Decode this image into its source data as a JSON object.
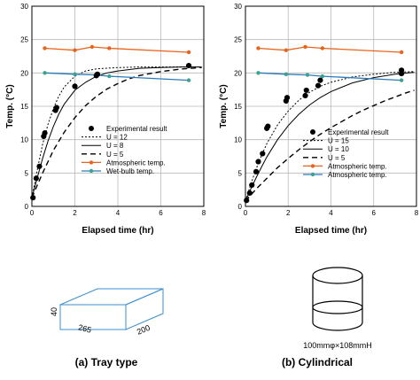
{
  "chart_data": [
    {
      "type": "line",
      "id": "a",
      "caption": "(a) Tray type",
      "xlabel": "Elapsed time (hr)",
      "ylabel": "Temp. (°C)",
      "xlim": [
        0,
        8
      ],
      "ylim": [
        0,
        30
      ],
      "xticks": [
        0,
        2,
        4,
        6,
        8
      ],
      "yticks": [
        0,
        5,
        10,
        15,
        20,
        25,
        30
      ],
      "grid": true,
      "legend_position": "bottom-right",
      "legend": [
        {
          "label": "Experimental result",
          "style": "dots",
          "color": "#000000"
        },
        {
          "label": "U = 12",
          "style": "dotted",
          "color": "#000000"
        },
        {
          "label": "U = 8",
          "style": "solid",
          "color": "#000000"
        },
        {
          "label": "U = 5",
          "style": "dashed",
          "color": "#000000"
        },
        {
          "label": "Atmospheric temp.",
          "style": "orange-line",
          "color": "#e8641c"
        },
        {
          "label": "Wet-bulb temp.",
          "style": "blue-line",
          "color": "#2b7bba"
        }
      ],
      "experimental": [
        [
          0.05,
          1.3
        ],
        [
          0.2,
          4.2
        ],
        [
          0.35,
          6.0
        ],
        [
          0.55,
          10.5
        ],
        [
          0.6,
          11.0
        ],
        [
          1.1,
          14.4
        ],
        [
          1.15,
          14.8
        ],
        [
          2.0,
          18.0
        ],
        [
          3.0,
          19.6
        ],
        [
          3.05,
          19.8
        ],
        [
          7.3,
          21.1
        ]
      ],
      "model_curves": [
        {
          "U": 12,
          "style": "dotted",
          "points": [
            [
              0,
              1.3
            ],
            [
              0.25,
              5.5
            ],
            [
              0.5,
              9.3
            ],
            [
              0.75,
              12.3
            ],
            [
              1.0,
              14.7
            ],
            [
              1.25,
              16.5
            ],
            [
              1.5,
              17.9
            ],
            [
              2.0,
              19.5
            ],
            [
              2.5,
              20.3
            ],
            [
              3.0,
              20.6
            ],
            [
              4.0,
              20.8
            ],
            [
              5.0,
              20.9
            ],
            [
              6.0,
              20.9
            ],
            [
              7.0,
              20.9
            ],
            [
              7.9,
              20.9
            ]
          ]
        },
        {
          "U": 8,
          "style": "solid",
          "points": [
            [
              0,
              1.3
            ],
            [
              0.25,
              4.3
            ],
            [
              0.5,
              7.2
            ],
            [
              0.75,
              9.8
            ],
            [
              1.0,
              12.0
            ],
            [
              1.25,
              13.8
            ],
            [
              1.5,
              15.3
            ],
            [
              2.0,
              17.4
            ],
            [
              2.5,
              18.6
            ],
            [
              3.0,
              19.5
            ],
            [
              3.5,
              20.0
            ],
            [
              4.0,
              20.3
            ],
            [
              5.0,
              20.7
            ],
            [
              6.0,
              20.8
            ],
            [
              7.0,
              20.9
            ],
            [
              7.9,
              20.9
            ]
          ]
        },
        {
          "U": 5,
          "style": "dashed",
          "points": [
            [
              0,
              1.3
            ],
            [
              0.5,
              5.0
            ],
            [
              1.0,
              8.4
            ],
            [
              1.5,
              11.1
            ],
            [
              2.0,
              13.3
            ],
            [
              2.5,
              15.1
            ],
            [
              3.0,
              16.5
            ],
            [
              3.5,
              17.6
            ],
            [
              4.0,
              18.4
            ],
            [
              4.5,
              19.1
            ],
            [
              5.0,
              19.6
            ],
            [
              6.0,
              20.2
            ],
            [
              7.0,
              20.6
            ],
            [
              7.9,
              20.8
            ]
          ]
        }
      ],
      "atmospheric": [
        [
          0.6,
          23.7
        ],
        [
          2.0,
          23.4
        ],
        [
          2.8,
          23.9
        ],
        [
          3.6,
          23.7
        ],
        [
          7.3,
          23.1
        ]
      ],
      "wet_bulb": [
        [
          0.6,
          20.0
        ],
        [
          2.0,
          19.8
        ],
        [
          3.0,
          19.7
        ],
        [
          3.6,
          19.5
        ],
        [
          7.3,
          18.9
        ]
      ]
    },
    {
      "type": "line",
      "id": "b",
      "caption": "(b) Cylindrical",
      "xlabel": "Elapsed time (hr)",
      "ylabel": "Temp. (°C)",
      "xlim": [
        0,
        8
      ],
      "ylim": [
        0,
        30
      ],
      "xticks": [
        0,
        2,
        4,
        6,
        8
      ],
      "yticks": [
        0,
        5,
        10,
        15,
        20,
        25,
        30
      ],
      "grid": true,
      "legend_position": "bottom-right",
      "legend": [
        {
          "label": "Experimental result",
          "style": "dots",
          "color": "#000000"
        },
        {
          "label": "U = 15",
          "style": "dotted",
          "color": "#000000"
        },
        {
          "label": "U = 10",
          "style": "solid",
          "color": "#000000"
        },
        {
          "label": "U = 5",
          "style": "dashed",
          "color": "#000000"
        },
        {
          "label": "Atmospheric temp.",
          "style": "orange-line",
          "color": "#e8641c"
        },
        {
          "label": "Atmospheric temp.",
          "style": "teal-line",
          "color": "#2b7bba"
        }
      ],
      "experimental": [
        [
          0.05,
          0.9
        ],
        [
          0.2,
          2.0
        ],
        [
          0.3,
          3.2
        ],
        [
          0.5,
          5.2
        ],
        [
          0.6,
          6.7
        ],
        [
          0.8,
          7.9
        ],
        [
          1.0,
          11.7
        ],
        [
          1.05,
          12.0
        ],
        [
          1.9,
          15.8
        ],
        [
          1.95,
          16.3
        ],
        [
          2.8,
          16.6
        ],
        [
          2.85,
          17.4
        ],
        [
          3.4,
          18.1
        ],
        [
          3.5,
          18.9
        ],
        [
          7.3,
          19.9
        ],
        [
          7.3,
          20.4
        ]
      ],
      "model_curves": [
        {
          "U": 15,
          "style": "dotted",
          "points": [
            [
              0,
              0.8
            ],
            [
              0.25,
              3.3
            ],
            [
              0.5,
              5.6
            ],
            [
              0.75,
              7.6
            ],
            [
              1.0,
              9.4
            ],
            [
              1.5,
              12.2
            ],
            [
              2.0,
              14.3
            ],
            [
              2.5,
              15.9
            ],
            [
              3.0,
              17.1
            ],
            [
              3.5,
              18.0
            ],
            [
              4.0,
              18.6
            ],
            [
              5.0,
              19.4
            ],
            [
              6.0,
              19.8
            ],
            [
              7.0,
              20.1
            ],
            [
              7.9,
              20.2
            ]
          ]
        },
        {
          "U": 10,
          "style": "solid",
          "points": [
            [
              0,
              0.8
            ],
            [
              0.25,
              2.6
            ],
            [
              0.5,
              4.3
            ],
            [
              0.75,
              5.9
            ],
            [
              1.0,
              7.4
            ],
            [
              1.5,
              10.0
            ],
            [
              2.0,
              12.1
            ],
            [
              2.5,
              13.8
            ],
            [
              3.0,
              15.2
            ],
            [
              3.5,
              16.3
            ],
            [
              4.0,
              17.2
            ],
            [
              5.0,
              18.5
            ],
            [
              6.0,
              19.3
            ],
            [
              7.0,
              19.8
            ],
            [
              7.9,
              20.1
            ]
          ]
        },
        {
          "U": 5,
          "style": "dashed",
          "points": [
            [
              0,
              0.8
            ],
            [
              0.5,
              2.6
            ],
            [
              1.0,
              4.2
            ],
            [
              1.5,
              5.8
            ],
            [
              2.0,
              7.2
            ],
            [
              2.5,
              8.5
            ],
            [
              3.0,
              9.7
            ],
            [
              3.5,
              10.8
            ],
            [
              4.0,
              11.8
            ],
            [
              4.5,
              12.7
            ],
            [
              5.0,
              13.6
            ],
            [
              5.5,
              14.4
            ],
            [
              6.0,
              15.1
            ],
            [
              6.5,
              15.8
            ],
            [
              7.0,
              16.4
            ],
            [
              7.5,
              17.0
            ],
            [
              7.9,
              17.4
            ]
          ]
        }
      ],
      "atmospheric": [
        [
          0.6,
          23.7
        ],
        [
          1.9,
          23.4
        ],
        [
          2.8,
          23.9
        ],
        [
          3.6,
          23.7
        ],
        [
          7.3,
          23.1
        ]
      ],
      "wet_bulb": [
        [
          0.6,
          20.0
        ],
        [
          1.9,
          19.8
        ],
        [
          2.9,
          19.7
        ],
        [
          3.6,
          19.5
        ],
        [
          7.3,
          18.9
        ]
      ]
    }
  ],
  "illustrations": {
    "tray": {
      "height_label": "40",
      "length_label": "265",
      "width_label": "200"
    },
    "cylinder": {
      "label": "100mmφ×108mmH"
    }
  }
}
